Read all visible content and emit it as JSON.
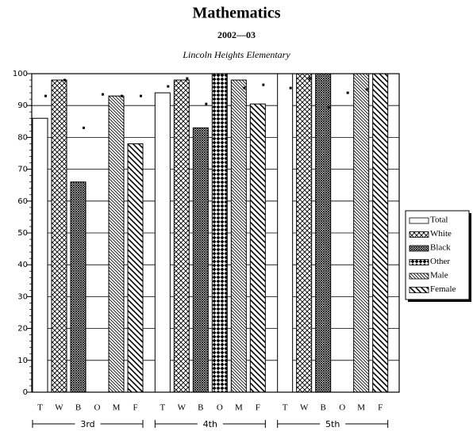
{
  "chart_data": {
    "type": "bar",
    "title": "Mathematics",
    "subtitle": "2002—03",
    "school": "Lincoln Heights Elementary",
    "categories": [
      "3rd",
      "4th",
      "5th"
    ],
    "bar_labels": [
      "T",
      "W",
      "B",
      "O",
      "M",
      "F"
    ],
    "series": [
      {
        "name": "Total",
        "pattern": "none",
        "values": [
          86,
          94,
          100
        ],
        "marker_values": [
          93,
          96,
          95.5
        ]
      },
      {
        "name": "White",
        "pattern": "crosshatch",
        "values": [
          98,
          98,
          100
        ],
        "marker_values": [
          98,
          98.5,
          98.5
        ]
      },
      {
        "name": "Black",
        "pattern": "dense",
        "values": [
          66,
          83,
          100
        ],
        "marker_values": [
          83,
          90.5,
          89.5
        ]
      },
      {
        "name": "Other",
        "pattern": "densecross",
        "values": [
          null,
          100,
          null
        ],
        "marker_values": [
          93.5,
          null,
          94
        ]
      },
      {
        "name": "Male",
        "pattern": "fine-diagonal",
        "values": [
          93,
          98,
          100
        ],
        "marker_values": [
          93,
          95.5,
          95
        ]
      },
      {
        "name": "Female",
        "pattern": "diagonal",
        "values": [
          78,
          90.5,
          100
        ],
        "marker_values": [
          93,
          96.5,
          null
        ]
      }
    ],
    "ylim": [
      0,
      100
    ],
    "yticks": [
      0,
      10,
      20,
      30,
      40,
      50,
      60,
      70,
      80,
      90,
      100
    ],
    "grid": true,
    "legend": "right"
  }
}
